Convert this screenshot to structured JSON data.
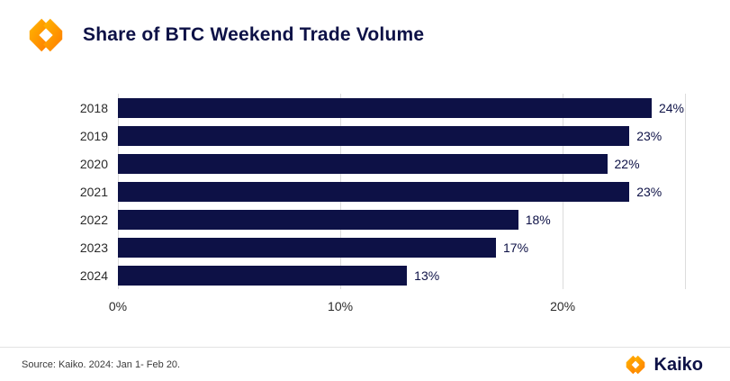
{
  "header": {
    "title": "Share of BTC Weekend Trade Volume"
  },
  "chart_data": {
    "type": "bar",
    "orientation": "horizontal",
    "title": "Share of BTC Weekend Trade Volume",
    "categories": [
      "2018",
      "2019",
      "2020",
      "2021",
      "2022",
      "2023",
      "2024"
    ],
    "values": [
      24,
      23,
      22,
      23,
      18,
      17,
      13
    ],
    "value_labels": [
      "24%",
      "23%",
      "22%",
      "23%",
      "18%",
      "17%",
      "13%"
    ],
    "xlabel": "",
    "ylabel": "",
    "xlim": [
      0,
      25.5
    ],
    "xticks": [
      0,
      10,
      20
    ],
    "xtick_labels": [
      "0%",
      "10%",
      "20%"
    ],
    "bar_color": "#0d1146",
    "grid": "vertical",
    "legend": "none"
  },
  "footer": {
    "source": "Source: Kaiko. 2024: Jan 1- Feb 20.",
    "brand": "Kaiko"
  },
  "colors": {
    "navy": "#0d1146",
    "orange": "#FF8A00",
    "orange_light": "#FFB800",
    "grid": "#dcdcdc"
  }
}
